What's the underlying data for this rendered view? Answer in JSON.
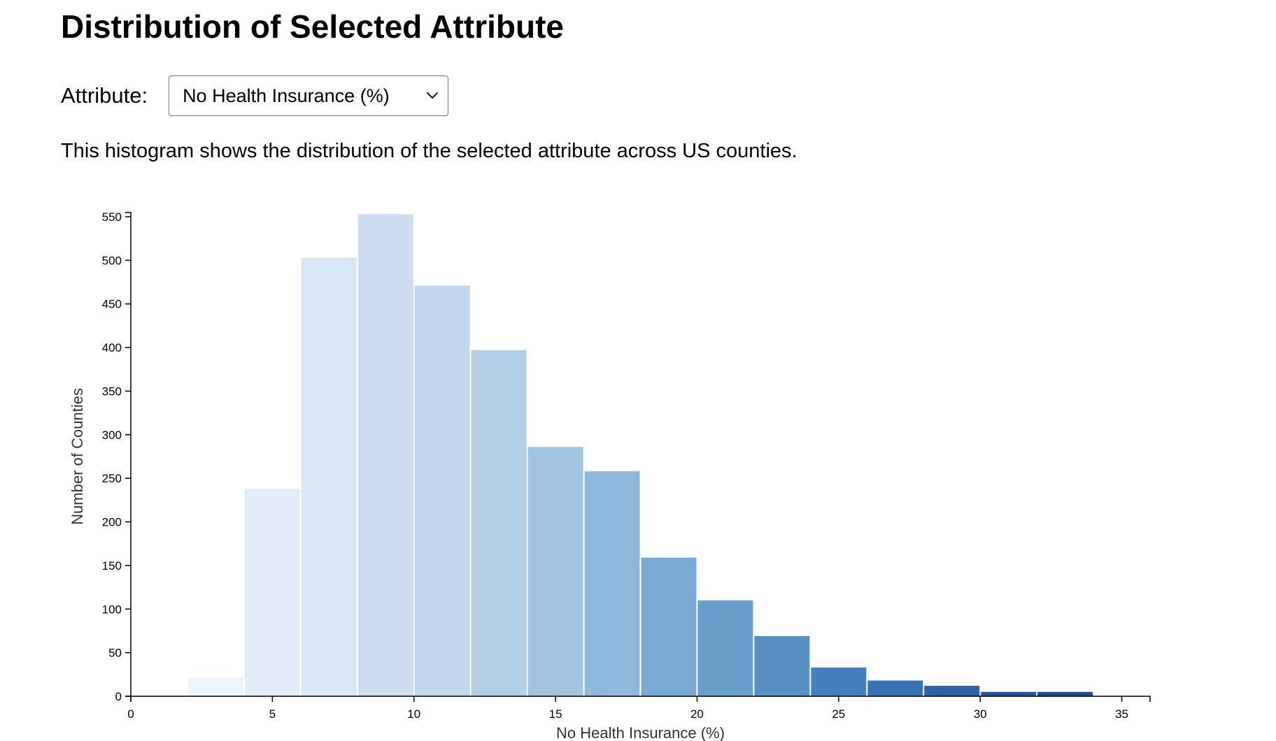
{
  "page": {
    "title": "Distribution of Selected Attribute",
    "attribute_label": "Attribute:",
    "selected_attribute": "No Health Insurance (%)",
    "description": "This histogram shows the distribution of the selected attribute across US counties.",
    "chevron_icon": "chevron-down-icon"
  },
  "chart_data": {
    "type": "bar",
    "histogram": true,
    "xlabel": "No Health Insurance (%)",
    "ylabel": "Number of Counties",
    "xlim": [
      0,
      36
    ],
    "ylim": [
      0,
      550
    ],
    "xticks": [
      0,
      5,
      10,
      15,
      20,
      25,
      30,
      35
    ],
    "yticks": [
      0,
      50,
      100,
      150,
      200,
      250,
      300,
      350,
      400,
      450,
      500,
      550
    ],
    "bins": [
      {
        "x0": 2,
        "x1": 4,
        "count": 21,
        "color": "#eef4fb"
      },
      {
        "x0": 4,
        "x1": 6,
        "count": 238,
        "color": "#e3edf8"
      },
      {
        "x0": 6,
        "x1": 8,
        "count": 503,
        "color": "#d9e6f4"
      },
      {
        "x0": 8,
        "x1": 10,
        "count": 553,
        "color": "#cedef0"
      },
      {
        "x0": 10,
        "x1": 12,
        "count": 471,
        "color": "#c1d7eb"
      },
      {
        "x0": 12,
        "x1": 14,
        "count": 397,
        "color": "#b1cfe5"
      },
      {
        "x0": 14,
        "x1": 16,
        "count": 286,
        "color": "#a2c5e0"
      },
      {
        "x0": 16,
        "x1": 18,
        "count": 258,
        "color": "#8fb9da"
      },
      {
        "x0": 18,
        "x1": 20,
        "count": 159,
        "color": "#7aaad3"
      },
      {
        "x0": 20,
        "x1": 22,
        "count": 110,
        "color": "#6a9fcb"
      },
      {
        "x0": 22,
        "x1": 24,
        "count": 69,
        "color": "#5890c3"
      },
      {
        "x0": 24,
        "x1": 26,
        "count": 33,
        "color": "#467fbd"
      },
      {
        "x0": 26,
        "x1": 28,
        "count": 18,
        "color": "#3971b5"
      },
      {
        "x0": 28,
        "x1": 30,
        "count": 12,
        "color": "#2e62a8"
      },
      {
        "x0": 30,
        "x1": 32,
        "count": 5,
        "color": "#25549a"
      },
      {
        "x0": 32,
        "x1": 34,
        "count": 5,
        "color": "#1f4a8c"
      }
    ]
  }
}
